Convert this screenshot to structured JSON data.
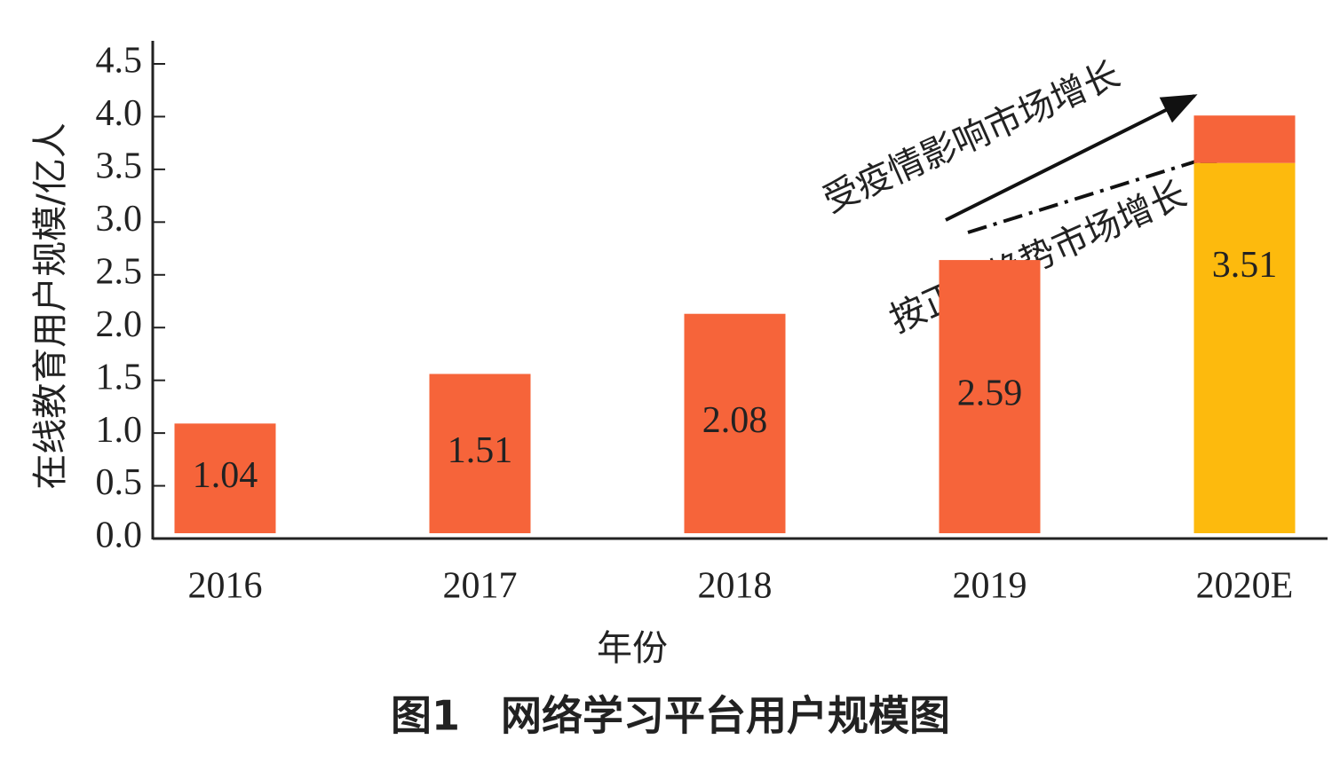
{
  "chart_data": {
    "type": "stacked_bar",
    "ylabel": "在线教育用户规模/亿人",
    "xlabel": "年份",
    "caption": "图1　网络学习平台用户规模图",
    "categories": [
      "2016",
      "2017",
      "2018",
      "2019",
      "2020E"
    ],
    "series": [
      {
        "color": "#fdba0d",
        "values": [
          null,
          null,
          null,
          null,
          3.51
        ],
        "value_labels": [
          null,
          null,
          null,
          null,
          "3.51"
        ]
      },
      {
        "color": "#f6643a",
        "values": [
          1.04,
          1.51,
          2.08,
          2.59,
          0.45
        ],
        "value_labels": [
          "1.04",
          "1.51",
          "2.08",
          "2.59",
          null
        ]
      }
    ],
    "ylim": [
      0,
      4.5
    ],
    "yticks": [
      {
        "value": 0,
        "label": "0.0"
      },
      {
        "value": 0.5,
        "label": "0.5"
      },
      {
        "value": 1,
        "label": "1.0"
      },
      {
        "value": 1.5,
        "label": "1.5"
      },
      {
        "value": 2,
        "label": "2.0"
      },
      {
        "value": 2.5,
        "label": "2.5"
      },
      {
        "value": 3,
        "label": "3.0"
      },
      {
        "value": 3.5,
        "label": "3.5"
      },
      {
        "value": 4,
        "label": "4.0"
      },
      {
        "value": 4.5,
        "label": "4.5"
      }
    ],
    "annotations": [
      "受疫情影响市场增长",
      "按正常趋势市场增长"
    ]
  }
}
